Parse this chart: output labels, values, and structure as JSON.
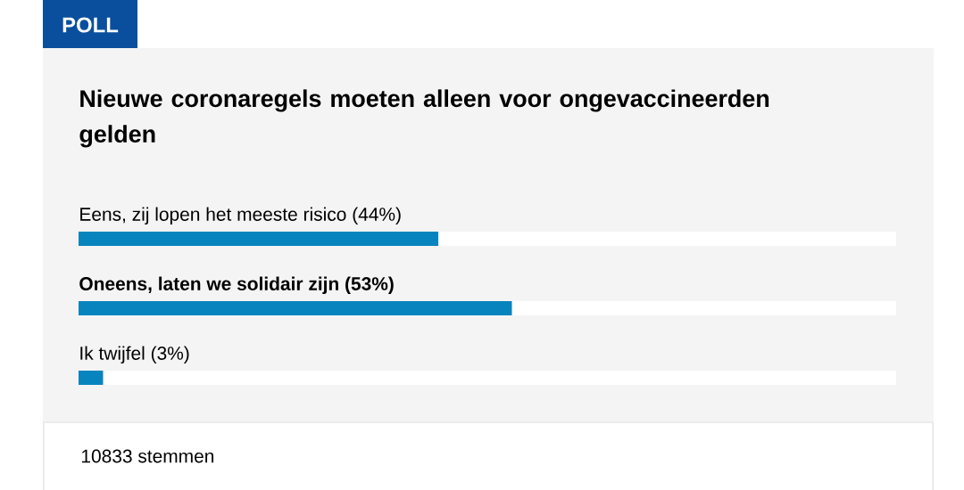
{
  "chart_data": {
    "type": "bar",
    "orientation": "horizontal",
    "title": "Nieuwe coronaregels moeten alleen voor ongevaccineerden gelden",
    "categories": [
      "Eens, zij lopen het meeste risico",
      "Oneens, laten we solidair zijn",
      "Ik twijfel"
    ],
    "values": [
      44,
      53,
      3
    ],
    "value_labels": [
      "(44%)",
      "(53%)",
      "(3%)"
    ],
    "color": "#0784be",
    "xlim": [
      0,
      100
    ],
    "tick_labels": false,
    "legend": false,
    "annotations": [
      "POLL",
      "10833 stemmen"
    ]
  }
}
